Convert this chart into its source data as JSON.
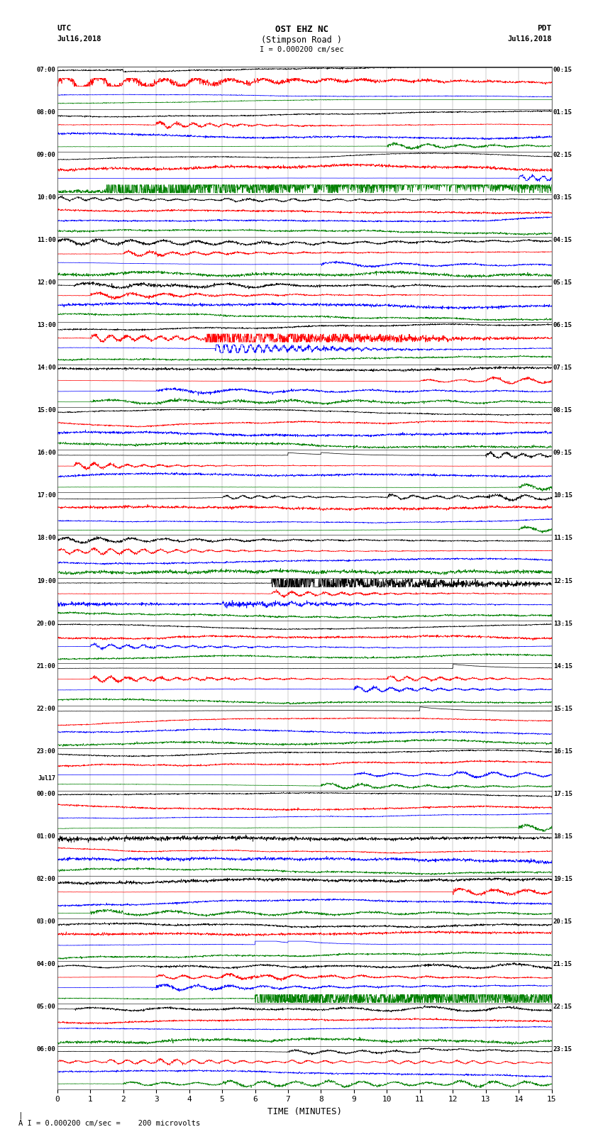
{
  "title_line1": "OST EHZ NC",
  "title_line2": "(Stimpson Road )",
  "title_line3": "I = 0.000200 cm/sec",
  "label_left_top": "UTC",
  "label_left_date": "Jul16,2018",
  "label_right_top": "PDT",
  "label_right_date": "Jul16,2018",
  "footer": "A I = 0.000200 cm/sec =    200 microvolts",
  "xlabel": "TIME (MINUTES)",
  "bg_color": "#ffffff",
  "trace_colors": [
    "black",
    "red",
    "blue",
    "green"
  ],
  "left_times": [
    "07:00",
    "08:00",
    "09:00",
    "10:00",
    "11:00",
    "12:00",
    "13:00",
    "14:00",
    "15:00",
    "16:00",
    "17:00",
    "18:00",
    "19:00",
    "20:00",
    "21:00",
    "22:00",
    "23:00",
    "00:00",
    "01:00",
    "02:00",
    "03:00",
    "04:00",
    "05:00",
    "06:00"
  ],
  "right_times": [
    "00:15",
    "01:15",
    "02:15",
    "03:15",
    "04:15",
    "05:15",
    "06:15",
    "07:15",
    "08:15",
    "09:15",
    "10:15",
    "11:15",
    "12:15",
    "13:15",
    "14:15",
    "15:15",
    "16:15",
    "17:15",
    "18:15",
    "19:15",
    "20:15",
    "21:15",
    "22:15",
    "23:15"
  ],
  "n_rows": 24,
  "n_traces_per_row": 4,
  "x_min": 0,
  "x_max": 15,
  "x_ticks": [
    0,
    1,
    2,
    3,
    4,
    5,
    6,
    7,
    8,
    9,
    10,
    11,
    12,
    13,
    14,
    15
  ],
  "figsize": [
    8.5,
    16.13
  ],
  "dpi": 100
}
